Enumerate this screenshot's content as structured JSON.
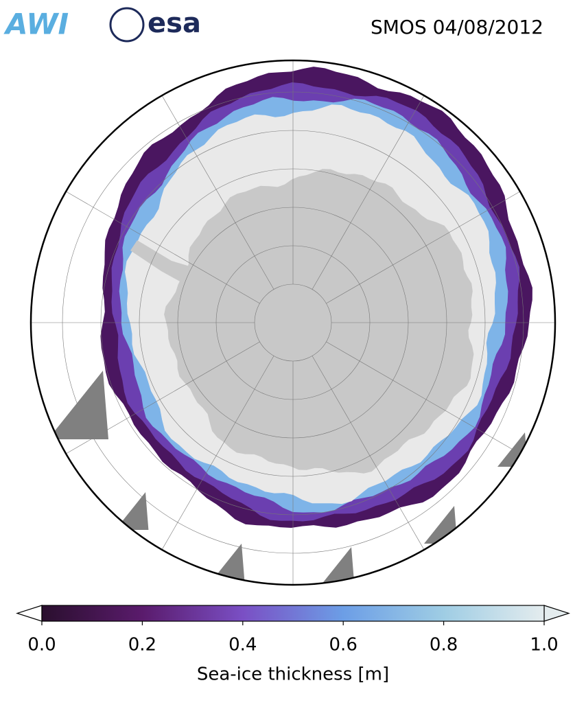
{
  "header": {
    "logos": [
      "AWI",
      "esa"
    ],
    "title": "SMOS 04/08/2012"
  },
  "colorbar": {
    "label": "Sea-ice thickness [m]",
    "lim": [
      0,
      1
    ],
    "ticks": [
      {
        "value": 0,
        "label": "0.0"
      },
      0.2,
      0.4,
      0.6,
      0.8,
      {
        "value": 1,
        "label": "1.0"
      }
    ]
  }
}
